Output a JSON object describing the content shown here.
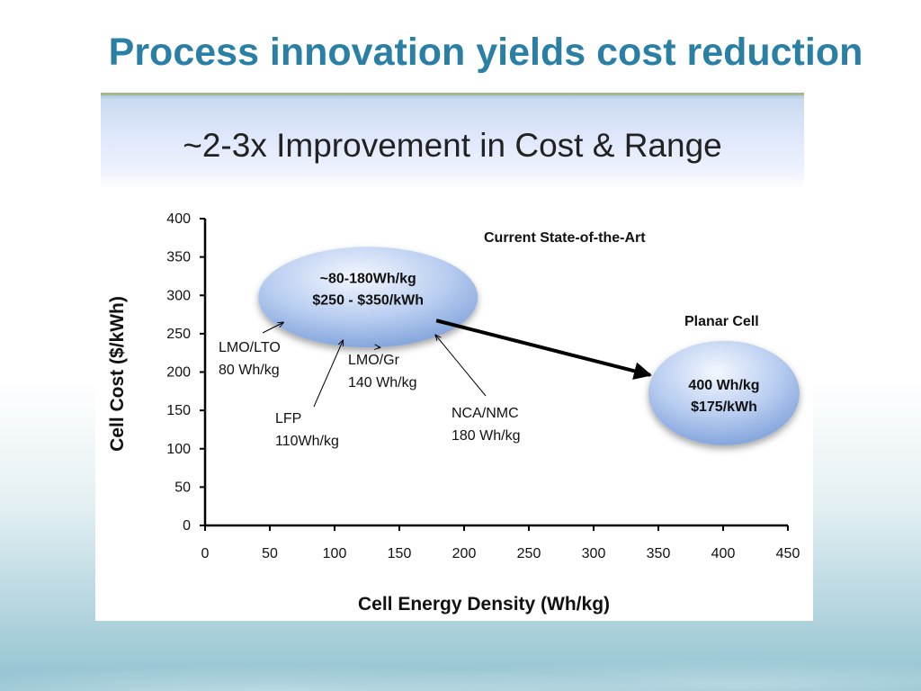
{
  "slide": {
    "title": "Process innovation yields cost reduction"
  },
  "colors": {
    "title": "#2a7fa5",
    "bubble_light": "#f2f6ff",
    "bubble_dark": "#7c9fd9",
    "axis": "#000000"
  },
  "chart_data": {
    "type": "scatter",
    "title": "~2-3x Improvement in Cost & Range",
    "xlabel": "Cell Energy Density (Wh/kg)",
    "ylabel": "Cell Cost ($/kWh)",
    "xlim": [
      0,
      450
    ],
    "ylim": [
      0,
      400
    ],
    "xticks": [
      0,
      50,
      100,
      150,
      200,
      250,
      300,
      350,
      400,
      450
    ],
    "yticks": [
      0,
      50,
      100,
      150,
      200,
      250,
      300,
      350,
      400
    ],
    "grid": false,
    "regions": [
      {
        "name": "Current State-of-the-Art",
        "label_lines": [
          "~80-180Wh/kg",
          "$250 - $350/kWh"
        ],
        "x_range": [
          80,
          180
        ],
        "y_range": [
          250,
          350
        ]
      },
      {
        "name": "Planar Cell",
        "label_lines": [
          "400 Wh/kg",
          "$175/kWh"
        ],
        "x": 400,
        "y": 175
      }
    ],
    "points": [
      {
        "label_lines": [
          "LMO/LTO",
          "80 Wh/kg"
        ],
        "x": 80
      },
      {
        "label_lines": [
          "LFP",
          "110Wh/kg"
        ],
        "x": 110
      },
      {
        "label_lines": [
          "LMO/Gr",
          "140 Wh/kg"
        ],
        "x": 140
      },
      {
        "label_lines": [
          "NCA/NMC",
          "180 Wh/kg"
        ],
        "x": 180
      }
    ],
    "arrow": {
      "from": "Current State-of-the-Art",
      "to": "Planar Cell"
    }
  }
}
